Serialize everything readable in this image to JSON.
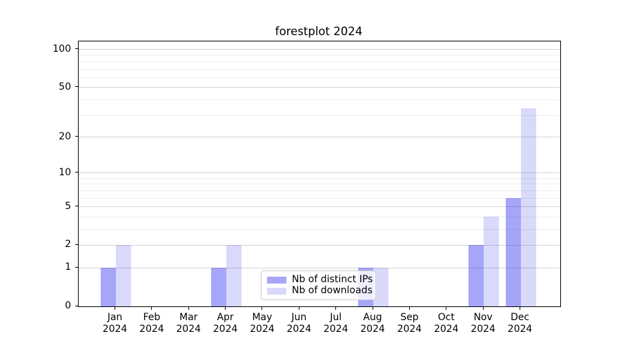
{
  "title": "forestplot 2024",
  "chart_data": {
    "type": "bar",
    "title": "forestplot 2024",
    "categories": [
      "Jan 2024",
      "Feb 2024",
      "Mar 2024",
      "Apr 2024",
      "May 2024",
      "Jun 2024",
      "Jul 2024",
      "Aug 2024",
      "Sep 2024",
      "Oct 2024",
      "Nov 2024",
      "Dec 2024"
    ],
    "month_labels": [
      "Jan",
      "Feb",
      "Mar",
      "Apr",
      "May",
      "Jun",
      "Jul",
      "Aug",
      "Sep",
      "Oct",
      "Nov",
      "Dec"
    ],
    "year_label": "2024",
    "series": [
      {
        "name": "Nb of distinct IPs",
        "color": "#a6a6f8",
        "fill": "rgba(0,0,235,0.35)",
        "values": [
          1,
          0,
          0,
          1,
          0,
          0,
          0,
          1,
          0,
          0,
          2,
          6
        ]
      },
      {
        "name": "Nb of downloads",
        "color": "#d9d9fb",
        "fill": "rgba(0,0,228,0.15)",
        "values": [
          2,
          0,
          0,
          2,
          0,
          0,
          0,
          1,
          0,
          0,
          4,
          34
        ]
      }
    ],
    "xlabel": "",
    "ylabel": "",
    "y_scale": "log1p",
    "y_max": 116,
    "y_major_ticks": [
      0,
      1,
      2,
      5,
      10,
      20,
      50,
      100
    ],
    "y_minor_gridlines": [
      3,
      4,
      6,
      7,
      8,
      9,
      30,
      40,
      60,
      70,
      80,
      90
    ],
    "grid": true,
    "legend_position": "lower center"
  }
}
